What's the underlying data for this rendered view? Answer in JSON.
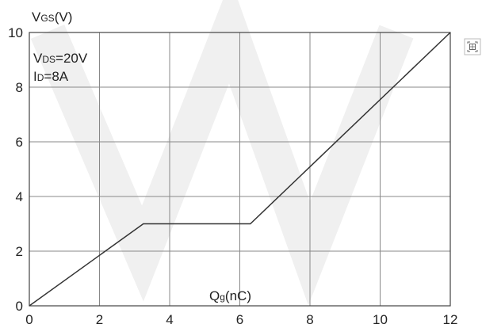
{
  "chart_data": {
    "type": "line",
    "ylabel_main": "V",
    "ylabel_sub": "GS",
    "ylabel_tail": "(V)",
    "xlabel_main": "Q",
    "xlabel_sub": "g",
    "xlabel_tail": "(nC)",
    "annotation_vds_main": "V",
    "annotation_vds_sub": "DS",
    "annotation_vds_tail": "=20V",
    "annotation_id_main": "I",
    "annotation_id_sub": "D",
    "annotation_id_tail": "=8A",
    "xlim": [
      0,
      12
    ],
    "ylim": [
      0,
      10
    ],
    "x_ticks": [
      "0",
      "2",
      "4",
      "6",
      "8",
      "10",
      "12"
    ],
    "y_ticks": [
      "0",
      "2",
      "4",
      "6",
      "8",
      "10"
    ],
    "grid": true,
    "series": [
      {
        "points": [
          [
            0,
            0
          ],
          [
            3.25,
            3.0
          ],
          [
            6.3,
            3.0
          ],
          [
            12,
            10
          ]
        ]
      }
    ],
    "line_color": "#333333"
  },
  "icons": {
    "corner": "scan-icon"
  }
}
